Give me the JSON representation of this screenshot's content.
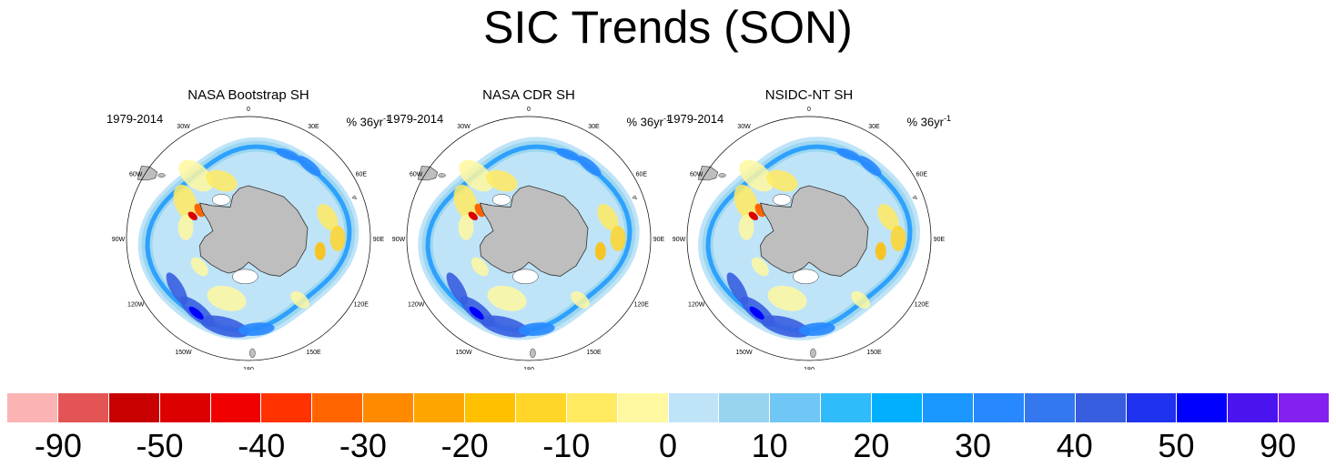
{
  "title": "SIC Trends (SON)",
  "panels": [
    {
      "title": "NASA Bootstrap SH",
      "period": "1979-2014",
      "units": "% 36yr",
      "units_sup": "-1"
    },
    {
      "title": "NASA CDR SH",
      "period": "1979-2014",
      "units": "% 36yr",
      "units_sup": "-1"
    },
    {
      "title": "NSIDC-NT SH",
      "period": "1979-2014",
      "units": "% 36yr",
      "units_sup": "-1"
    }
  ],
  "longitude_labels": [
    "0",
    "30E",
    "60E",
    "90E",
    "120E",
    "150E",
    "180",
    "150W",
    "120W",
    "90W",
    "60W",
    "30W"
  ],
  "colorbar": {
    "colors": [
      "#fcb3b3",
      "#e35454",
      "#c80000",
      "#dc0000",
      "#f00000",
      "#ff3200",
      "#ff6400",
      "#ff8a00",
      "#ffa500",
      "#ffc000",
      "#ffd528",
      "#ffea60",
      "#fff8a0",
      "#bfe4f8",
      "#98d4f0",
      "#70c6f4",
      "#30bcfa",
      "#00b0ff",
      "#1a98ff",
      "#2888ff",
      "#3478f0",
      "#385ee0",
      "#1e32f0",
      "#0000ff",
      "#4a14f0",
      "#8420f0"
    ],
    "labels": [
      "-90",
      "-50",
      "-40",
      "-30",
      "-20",
      "-10",
      "0",
      "10",
      "20",
      "30",
      "40",
      "50",
      "90"
    ]
  },
  "colors": {
    "land": "#bebebe",
    "background": "#ffffff"
  }
}
